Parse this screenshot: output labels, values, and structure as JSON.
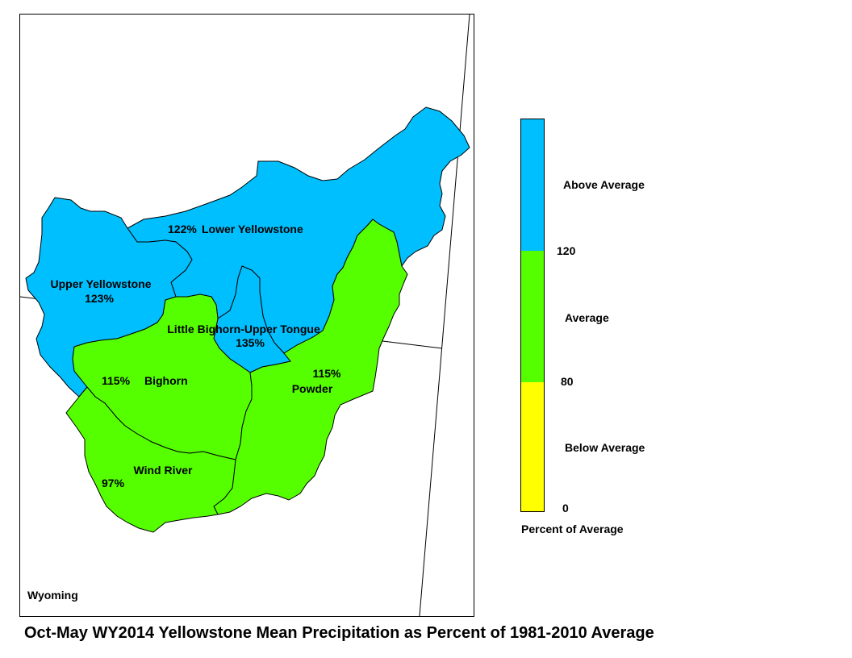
{
  "title": "Oct-May WY2014 Yellowstone Mean Precipitation as Percent of 1981-2010 Average",
  "state_label": "Wyoming",
  "colors": {
    "above": "#00bfff",
    "average": "#55ff00",
    "below": "#ffff00",
    "outline": "#000000"
  },
  "basins": {
    "lower_yellowstone": {
      "name": "Lower Yellowstone",
      "percent": "122%"
    },
    "upper_yellowstone": {
      "name": "Upper Yellowstone",
      "percent": "123%"
    },
    "little_bighorn_upper_tongue": {
      "name": "Little Bighorn-Upper Tongue",
      "percent": "135%"
    },
    "bighorn": {
      "name": "Bighorn",
      "percent": "115%"
    },
    "powder": {
      "name": "Powder",
      "percent": "115%"
    },
    "wind_river": {
      "name": "Wind River",
      "percent": "97%"
    }
  },
  "legend": {
    "title": "Percent of Average",
    "categories": [
      {
        "label": "Above Average",
        "min": 120,
        "color": "#00bfff"
      },
      {
        "label": "Average",
        "min": 80,
        "max": 120,
        "color": "#55ff00"
      },
      {
        "label": "Below Average",
        "min": 0,
        "max": 80,
        "color": "#ffff00"
      }
    ],
    "ticks": [
      "120",
      "80",
      "0"
    ]
  }
}
